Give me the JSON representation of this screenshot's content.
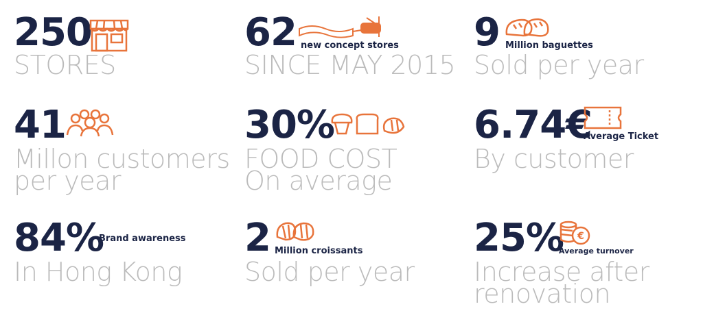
{
  "accent_color": "#e8743b",
  "number_color": "#1b2445",
  "subtitle_color": "#bbbbbb",
  "stats": [
    {
      "value": "250",
      "label": "",
      "lines": [
        "STORES"
      ],
      "icon": "storefront-icon"
    },
    {
      "value": "62",
      "label": "new concept stores",
      "lines": [
        "SINCE MAY 2015"
      ],
      "icon": "banner-plane-icon"
    },
    {
      "value": "9",
      "label": "Million baguettes",
      "lines": [
        "Sold per year"
      ],
      "icon": "bread-loaves-icon"
    },
    {
      "value": "41",
      "label": "",
      "lines": [
        "Millon customers",
        "per year"
      ],
      "icon": "people-group-icon"
    },
    {
      "value": "30%",
      "label": "",
      "lines": [
        "FOOD COST",
        "On average"
      ],
      "icon": "muffin-bread-croissant-icon"
    },
    {
      "value": "6.74€",
      "label": "Average Ticket",
      "lines": [
        "By customer"
      ],
      "icon": "ticket-icon"
    },
    {
      "value": "84%",
      "label": "Brand awareness",
      "lines": [
        "In Hong Kong"
      ],
      "icon": ""
    },
    {
      "value": "2",
      "label": "Million croissants",
      "lines": [
        "Sold per year"
      ],
      "icon": "croissant-icon"
    },
    {
      "value": "25%",
      "label": "Average turnover",
      "lines": [
        "Increase after",
        "renovation"
      ],
      "icon": "coins-euro-icon"
    }
  ]
}
